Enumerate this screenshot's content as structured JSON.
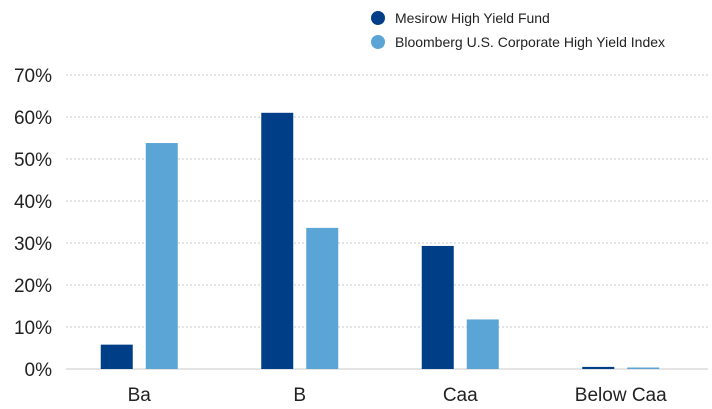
{
  "chart_data": {
    "type": "bar",
    "categories": [
      "Ba",
      "B",
      "Caa",
      "Below Caa"
    ],
    "series": [
      {
        "name": "Mesirow High Yield Fund",
        "color": "#003f87",
        "values": [
          5.8,
          61.0,
          29.3,
          0.5
        ]
      },
      {
        "name": "Bloomberg U.S. Corporate High Yield Index",
        "color": "#5ba4d6",
        "values": [
          53.8,
          33.6,
          11.8,
          0.3
        ]
      }
    ],
    "yticks": [
      "0%",
      "10%",
      "20%",
      "30%",
      "40%",
      "50%",
      "60%",
      "70%"
    ],
    "ylim": [
      0,
      70
    ],
    "grid": true,
    "legend_position": "top-right",
    "title": "",
    "xlabel": "",
    "ylabel": ""
  }
}
